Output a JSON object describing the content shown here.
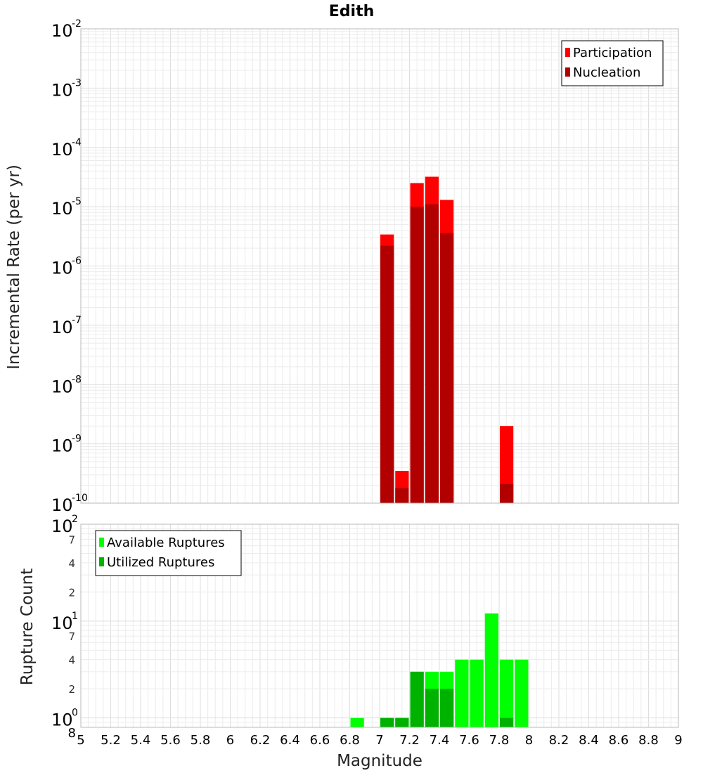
{
  "title": "Edith",
  "chart_data": [
    {
      "type": "bar",
      "title": "Edith",
      "xlabel": "",
      "ylabel": "Incremental Rate (per yr)",
      "xlim": [
        5,
        9
      ],
      "ylim": [
        1e-10,
        0.01
      ],
      "yscale": "log",
      "grid": true,
      "bar_width": 0.1,
      "legend_position": "top-right",
      "series": [
        {
          "name": "Participation",
          "color": "#ff0000",
          "x": [
            7.05,
            7.15,
            7.25,
            7.35,
            7.45,
            7.85
          ],
          "values": [
            3.4e-06,
            3.5e-10,
            2.5e-05,
            3.2e-05,
            1.3e-05,
            2e-09
          ]
        },
        {
          "name": "Nucleation",
          "color": "#b20000",
          "x": [
            7.05,
            7.15,
            7.25,
            7.35,
            7.45,
            7.85
          ],
          "values": [
            2.2e-06,
            1.8e-10,
            1e-05,
            1.1e-05,
            3.6e-06,
            2.1e-10
          ]
        }
      ]
    },
    {
      "type": "bar",
      "title": "",
      "xlabel": "Magnitude",
      "ylabel": "Rupture Count",
      "xlim": [
        5,
        9
      ],
      "ylim": [
        0.8,
        100
      ],
      "yscale": "log",
      "grid": true,
      "bar_width": 0.1,
      "legend_position": "top-left",
      "series": [
        {
          "name": "Available Ruptures",
          "color": "#00ff00",
          "x": [
            6.85,
            7.05,
            7.15,
            7.25,
            7.35,
            7.45,
            7.55,
            7.65,
            7.75,
            7.85,
            7.95
          ],
          "values": [
            1,
            1,
            1,
            3,
            3,
            3,
            4,
            4,
            12,
            4,
            4
          ]
        },
        {
          "name": "Utilized Ruptures",
          "color": "#00b200",
          "x": [
            7.05,
            7.15,
            7.25,
            7.35,
            7.45,
            7.85
          ],
          "values": [
            1,
            1,
            3,
            2,
            2,
            1
          ]
        }
      ]
    }
  ],
  "x_ticks": [
    "5",
    "5.2",
    "5.4",
    "5.6",
    "5.8",
    "6",
    "6.2",
    "6.4",
    "6.6",
    "6.8",
    "7",
    "7.2",
    "7.4",
    "7.6",
    "7.8",
    "8",
    "8.2",
    "8.4",
    "8.6",
    "8.8",
    "9"
  ],
  "top_y_ticks": [
    {
      "base": "10",
      "exp": "-2"
    },
    {
      "base": "10",
      "exp": "-3"
    },
    {
      "base": "10",
      "exp": "-4"
    },
    {
      "base": "10",
      "exp": "-5"
    },
    {
      "base": "10",
      "exp": "-6"
    },
    {
      "base": "10",
      "exp": "-7"
    },
    {
      "base": "10",
      "exp": "-8"
    },
    {
      "base": "10",
      "exp": "-9"
    },
    {
      "base": "10",
      "exp": "-10"
    }
  ],
  "bottom_y_major_ticks": [
    {
      "value": 100,
      "base": "10",
      "exp": "2"
    },
    {
      "value": 10,
      "base": "10",
      "exp": "1"
    },
    {
      "value": 1,
      "base": "10",
      "exp": "0"
    }
  ],
  "bottom_y_minor_ticks": [
    {
      "value": 70,
      "label": "7"
    },
    {
      "value": 40,
      "label": "4"
    },
    {
      "value": 20,
      "label": "2"
    },
    {
      "value": 7,
      "label": "7"
    },
    {
      "value": 4,
      "label": "4"
    },
    {
      "value": 2,
      "label": "2"
    },
    {
      "value": 0.8,
      "label": "8"
    }
  ]
}
